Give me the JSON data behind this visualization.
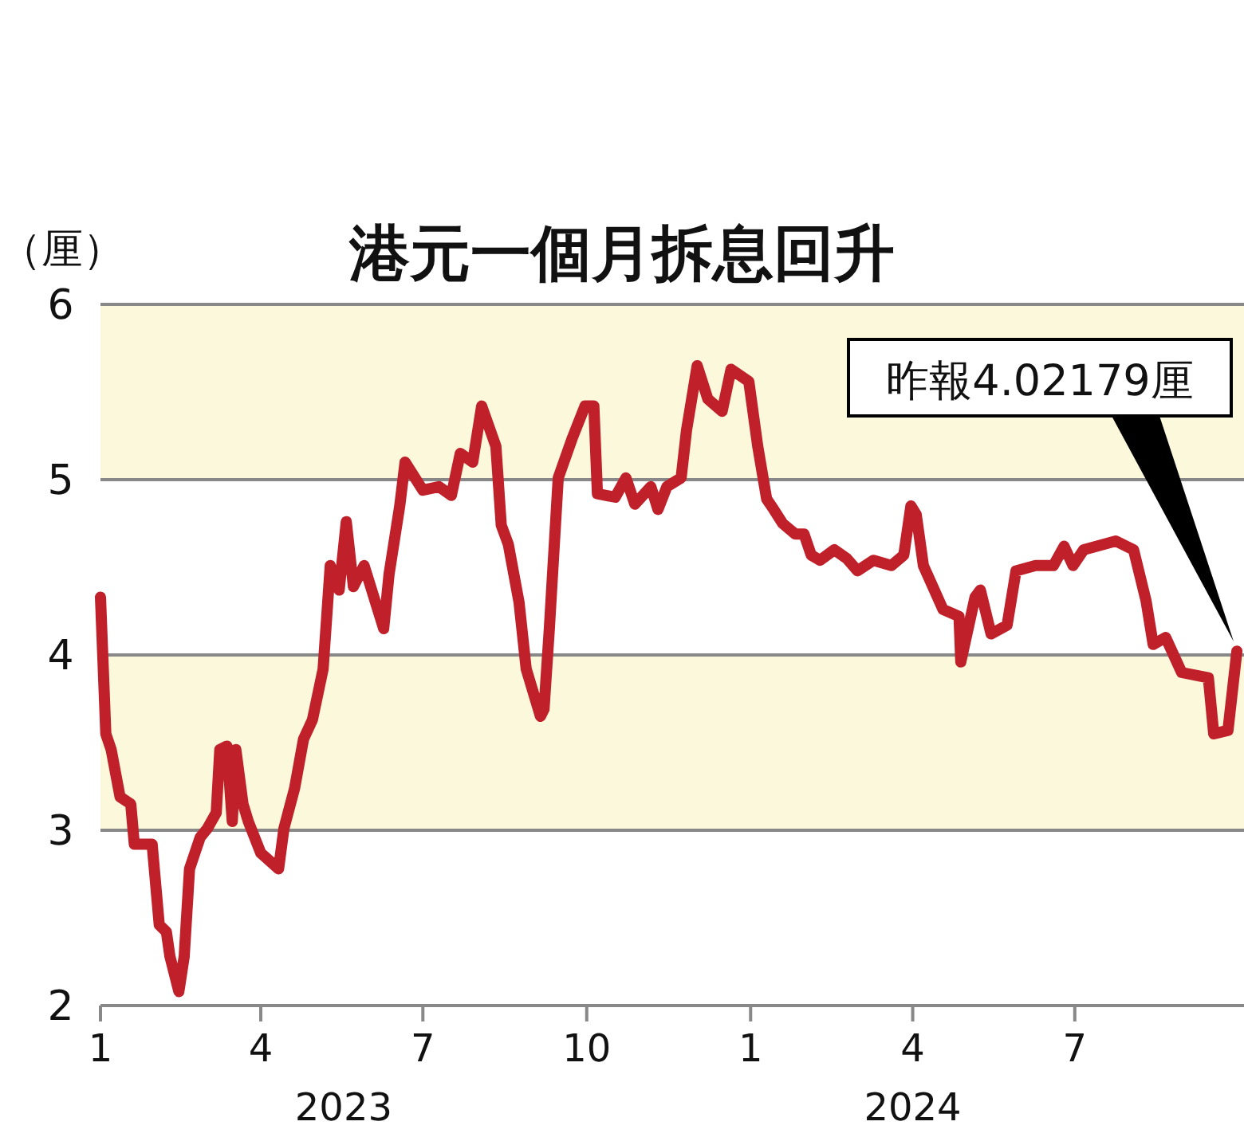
{
  "chart_data": {
    "type": "line",
    "title": "港元一個月拆息回升",
    "ylabel": "（厘）",
    "x": [
      "2023-01-01",
      "2023-01-04",
      "2023-01-07",
      "2023-01-12",
      "2023-01-18",
      "2023-01-20",
      "2023-01-30",
      "2023-02-03",
      "2023-02-07",
      "2023-02-09",
      "2023-02-14",
      "2023-02-17",
      "2023-02-20",
      "2023-02-26",
      "2023-03-02",
      "2023-03-07",
      "2023-03-09",
      "2023-03-13",
      "2023-03-16",
      "2023-03-18",
      "2023-03-22",
      "2023-03-25",
      "2023-04-01",
      "2023-04-11",
      "2023-04-14",
      "2023-04-20",
      "2023-04-25",
      "2023-04-30",
      "2023-05-06",
      "2023-05-10",
      "2023-05-15",
      "2023-05-19",
      "2023-05-23",
      "2023-05-29",
      "2023-06-09",
      "2023-06-12",
      "2023-06-18",
      "2023-06-21",
      "2023-07-01",
      "2023-07-10",
      "2023-07-17",
      "2023-07-22",
      "2023-07-29",
      "2023-08-03",
      "2023-08-11",
      "2023-08-14",
      "2023-08-18",
      "2023-08-24",
      "2023-08-28",
      "2023-09-05",
      "2023-09-07",
      "2023-09-10",
      "2023-09-15",
      "2023-09-23",
      "2023-09-30",
      "2023-10-05",
      "2023-10-07",
      "2023-10-17",
      "2023-10-23",
      "2023-10-28",
      "2023-11-06",
      "2023-11-10",
      "2023-11-15",
      "2023-11-23",
      "2023-11-26",
      "2023-12-02",
      "2023-12-08",
      "2023-12-16",
      "2023-12-21",
      "2023-12-31",
      "2024-01-05",
      "2024-01-10",
      "2024-01-14",
      "2024-01-19",
      "2024-01-26",
      "2024-01-31",
      "2024-02-04",
      "2024-02-09",
      "2024-02-17",
      "2024-02-24",
      "2024-03-01",
      "2024-03-10",
      "2024-03-20",
      "2024-03-27",
      "2024-03-31",
      "2024-04-03",
      "2024-04-07",
      "2024-04-18",
      "2024-04-27",
      "2024-04-28",
      "2024-05-06",
      "2024-05-09",
      "2024-05-15",
      "2024-05-24",
      "2024-05-29",
      "2024-06-09",
      "2024-06-19",
      "2024-06-25",
      "2024-06-30",
      "2024-07-06",
      "2024-07-24",
      "2024-08-03",
      "2024-08-10",
      "2024-08-14",
      "2024-08-21",
      "2024-08-30",
      "2024-09-14",
      "2024-09-17",
      "2024-09-25",
      "2024-09-30"
    ],
    "series": [
      {
        "color": "#c0202a",
        "values": [
          4.33,
          3.55,
          3.46,
          3.19,
          3.15,
          2.92,
          2.92,
          2.46,
          2.42,
          2.28,
          2.08,
          2.28,
          2.78,
          2.96,
          3.01,
          3.1,
          3.46,
          3.48,
          3.05,
          3.46,
          3.15,
          3.05,
          2.87,
          2.78,
          3.01,
          3.24,
          3.52,
          3.63,
          3.92,
          4.51,
          4.37,
          4.76,
          4.39,
          4.51,
          4.15,
          4.46,
          4.85,
          5.1,
          4.94,
          4.96,
          4.91,
          5.15,
          5.1,
          5.42,
          5.19,
          4.74,
          4.63,
          4.3,
          3.92,
          3.65,
          3.69,
          4.15,
          5.01,
          5.24,
          5.42,
          5.42,
          4.92,
          4.9,
          5.01,
          4.86,
          4.96,
          4.83,
          4.96,
          5.01,
          5.28,
          5.65,
          5.46,
          5.39,
          5.63,
          5.56,
          5.19,
          4.89,
          4.83,
          4.75,
          4.69,
          4.69,
          4.57,
          4.54,
          4.6,
          4.55,
          4.48,
          4.54,
          4.51,
          4.57,
          4.85,
          4.8,
          4.51,
          4.26,
          4.22,
          3.96,
          4.33,
          4.37,
          4.12,
          4.17,
          4.48,
          4.51,
          4.51,
          4.62,
          4.51,
          4.6,
          4.65,
          4.6,
          4.31,
          4.06,
          4.1,
          3.9,
          3.87,
          3.55,
          3.57,
          4.02179
        ]
      }
    ],
    "xlim": [
      "2023-01-01",
      "2024-10-04"
    ],
    "xticks": [
      {
        "value": "2023-01-01",
        "label": "1"
      },
      {
        "value": "2023-04-01",
        "label": "4"
      },
      {
        "value": "2023-07-01",
        "label": "7"
      },
      {
        "value": "2023-10-01",
        "label": "10"
      },
      {
        "value": "2024-01-01",
        "label": "1"
      },
      {
        "value": "2024-04-01",
        "label": "4"
      },
      {
        "value": "2024-07-01",
        "label": "7"
      }
    ],
    "ylim": [
      2,
      6
    ],
    "yticks": [
      2,
      3,
      4,
      5,
      6
    ],
    "bands": [
      {
        "axis": "y",
        "from": 3,
        "to": 4,
        "color": "#fcf8dc"
      },
      {
        "axis": "y",
        "from": 5,
        "to": 6,
        "color": "#fcf8dc"
      }
    ],
    "grid": "y",
    "marker": "none",
    "line_style": "solid",
    "annotations": [
      "昨報4.02179厘",
      "2023",
      "2024"
    ]
  }
}
